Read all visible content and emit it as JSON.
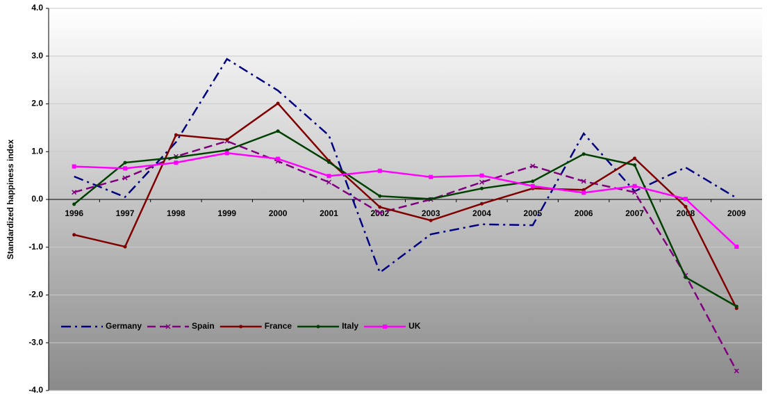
{
  "chart_data": {
    "type": "line",
    "y_label": "Standardized happiness index",
    "categories": [
      "1996",
      "1997",
      "1998",
      "1999",
      "2000",
      "2001",
      "2002",
      "2003",
      "2004",
      "2005",
      "2006",
      "2007",
      "2008",
      "2009"
    ],
    "ylim": [
      -4,
      4
    ],
    "yticks": [
      {
        "value": -4,
        "label": "-4.0"
      },
      {
        "value": -3,
        "label": "-3.0"
      },
      {
        "value": -2,
        "label": "-2.0"
      },
      {
        "value": -1,
        "label": "-1.0"
      },
      {
        "value": 0,
        "label": "0.0"
      },
      {
        "value": 1,
        "label": "1.0"
      },
      {
        "value": 2,
        "label": "2.0"
      },
      {
        "value": 3,
        "label": "3.0"
      },
      {
        "value": 4,
        "label": "4.0"
      }
    ],
    "grid": true,
    "legend": "bottom-left",
    "series": [
      {
        "name": "Germany",
        "color": "#000080",
        "style": "dashdot",
        "marker": "none",
        "values": [
          0.48,
          0.05,
          1.2,
          2.94,
          2.28,
          1.34,
          -1.53,
          -0.73,
          -0.52,
          -0.54,
          1.38,
          0.17,
          0.67,
          0.03
        ]
      },
      {
        "name": "Spain",
        "color": "#800080",
        "style": "dashed",
        "marker": "x",
        "values": [
          0.15,
          0.45,
          0.9,
          1.22,
          0.8,
          0.36,
          -0.28,
          0.0,
          0.36,
          0.7,
          0.38,
          0.15,
          -1.59,
          -3.59
        ]
      },
      {
        "name": "France",
        "color": "#800000",
        "style": "solid",
        "marker": "circle",
        "values": [
          -0.74,
          -0.99,
          1.35,
          1.25,
          2.01,
          0.81,
          -0.16,
          -0.44,
          -0.09,
          0.23,
          0.2,
          0.86,
          -0.15,
          -2.28
        ]
      },
      {
        "name": "Italy",
        "color": "#004000",
        "style": "solid",
        "marker": "circle",
        "values": [
          -0.1,
          0.77,
          0.88,
          1.03,
          1.43,
          0.78,
          0.07,
          0.01,
          0.23,
          0.38,
          0.95,
          0.72,
          -1.63,
          -2.24
        ]
      },
      {
        "name": "UK",
        "color": "#ff00ff",
        "style": "solid",
        "marker": "square",
        "values": [
          0.69,
          0.65,
          0.77,
          0.97,
          0.85,
          0.49,
          0.6,
          0.47,
          0.5,
          0.28,
          0.14,
          0.28,
          0.01,
          -0.99
        ]
      }
    ]
  }
}
